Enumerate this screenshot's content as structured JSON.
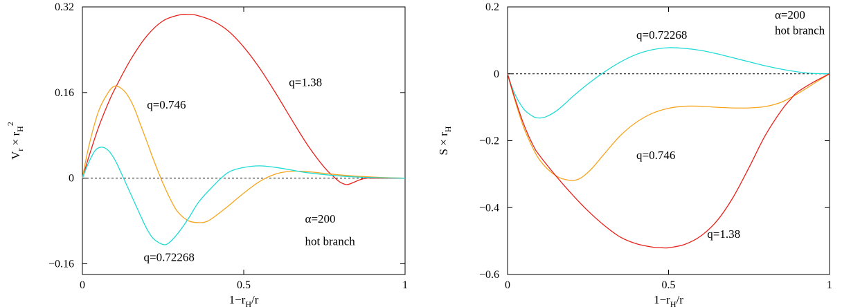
{
  "chart_data": [
    {
      "type": "line",
      "xlabel": {
        "main": "1−r",
        "sub": "H",
        "rest": "/r"
      },
      "ylabel": {
        "main": "V",
        "sub": "r",
        "mid": " × r",
        "sub2": "H",
        "sup": "2"
      },
      "xlim": [
        0,
        1
      ],
      "ylim": [
        -0.18,
        0.32
      ],
      "xticks": [
        0,
        0.5,
        1
      ],
      "xtick_labels": [
        "0",
        "0.5",
        "1"
      ],
      "yticks": [
        -0.16,
        0,
        0.16,
        0.32
      ],
      "ytick_labels": [
        "−0.16",
        "0",
        "0.16",
        "0.32"
      ],
      "zero_line": true,
      "annotations": [
        {
          "text": "α=200",
          "x": 0.69,
          "y": -0.083
        },
        {
          "text": "hot branch",
          "x": 0.69,
          "y": -0.125
        }
      ],
      "series": [
        {
          "name": "q=1.38",
          "color": "#e8201a",
          "label_at": {
            "x": 0.64,
            "y": 0.172
          },
          "x": [
            0,
            0.02,
            0.05,
            0.08,
            0.1,
            0.15,
            0.2,
            0.25,
            0.3,
            0.33,
            0.35,
            0.4,
            0.45,
            0.5,
            0.55,
            0.6,
            0.65,
            0.7,
            0.75,
            0.78,
            0.8,
            0.82,
            0.84,
            0.86,
            0.88,
            0.9,
            0.95,
            1.0
          ],
          "y": [
            0,
            0.04,
            0.095,
            0.14,
            0.166,
            0.222,
            0.266,
            0.294,
            0.305,
            0.306,
            0.305,
            0.295,
            0.276,
            0.245,
            0.205,
            0.158,
            0.108,
            0.06,
            0.02,
            0.002,
            -0.008,
            -0.012,
            -0.008,
            -0.003,
            0,
            0,
            0,
            0
          ]
        },
        {
          "name": "q=0.746",
          "color": "#f5a51e",
          "label_at": {
            "x": 0.2,
            "y": 0.13
          },
          "x": [
            0,
            0.02,
            0.05,
            0.08,
            0.1,
            0.12,
            0.14,
            0.16,
            0.18,
            0.2,
            0.22,
            0.25,
            0.28,
            0.3,
            0.33,
            0.36,
            0.38,
            0.4,
            0.45,
            0.5,
            0.55,
            0.6,
            0.65,
            0.7,
            0.8,
            0.9,
            1.0
          ],
          "y": [
            0,
            0.06,
            0.125,
            0.16,
            0.172,
            0.168,
            0.155,
            0.132,
            0.1,
            0.068,
            0.035,
            -0.01,
            -0.048,
            -0.066,
            -0.08,
            -0.083,
            -0.082,
            -0.076,
            -0.053,
            -0.028,
            -0.006,
            0.008,
            0.013,
            0.012,
            0.006,
            0.002,
            0
          ]
        },
        {
          "name": "q=0.72268",
          "color": "#1fdbd5",
          "label_at": {
            "x": 0.19,
            "y": -0.155
          },
          "x": [
            0,
            0.02,
            0.04,
            0.06,
            0.08,
            0.1,
            0.12,
            0.15,
            0.18,
            0.2,
            0.22,
            0.25,
            0.27,
            0.3,
            0.33,
            0.36,
            0.4,
            0.45,
            0.5,
            0.55,
            0.6,
            0.65,
            0.7,
            0.8,
            0.9,
            1.0
          ],
          "y": [
            0,
            0.03,
            0.052,
            0.058,
            0.052,
            0.035,
            0.01,
            -0.03,
            -0.07,
            -0.095,
            -0.113,
            -0.124,
            -0.12,
            -0.1,
            -0.074,
            -0.045,
            -0.018,
            0.01,
            0.02,
            0.023,
            0.02,
            0.015,
            0.01,
            0.004,
            0.001,
            0
          ]
        }
      ]
    },
    {
      "type": "line",
      "xlabel": {
        "main": "1−r",
        "sub": "H",
        "rest": "/r"
      },
      "ylabel": {
        "main": "S × r",
        "sub": "H",
        "mid": "",
        "sub2": "",
        "sup": ""
      },
      "xlim": [
        0,
        1
      ],
      "ylim": [
        -0.6,
        0.2
      ],
      "xticks": [
        0,
        0.5,
        1
      ],
      "xtick_labels": [
        "0",
        "0.5",
        "1"
      ],
      "yticks": [
        -0.6,
        -0.4,
        -0.2,
        0,
        0.2
      ],
      "ytick_labels": [
        "−0.6",
        "−0.4",
        "−0.2",
        "0",
        "0.2"
      ],
      "zero_line": true,
      "annotations": [
        {
          "text": "α=200",
          "x": 0.83,
          "y": 0.165
        },
        {
          "text": "hot branch",
          "x": 0.83,
          "y": 0.118
        }
      ],
      "series": [
        {
          "name": "q=0.72268",
          "color": "#1fdbd5",
          "label_at": {
            "x": 0.4,
            "y": 0.105
          },
          "x": [
            0,
            0.02,
            0.05,
            0.08,
            0.1,
            0.12,
            0.15,
            0.18,
            0.2,
            0.25,
            0.3,
            0.35,
            0.4,
            0.45,
            0.5,
            0.55,
            0.6,
            0.65,
            0.7,
            0.75,
            0.8,
            0.85,
            0.9,
            0.95,
            1.0
          ],
          "y": [
            0,
            -0.055,
            -0.105,
            -0.128,
            -0.132,
            -0.128,
            -0.112,
            -0.088,
            -0.07,
            -0.03,
            0.005,
            0.035,
            0.058,
            0.072,
            0.078,
            0.076,
            0.07,
            0.06,
            0.048,
            0.036,
            0.024,
            0.014,
            0.006,
            0.001,
            0
          ]
        },
        {
          "name": "q=0.746",
          "color": "#f5a51e",
          "label_at": {
            "x": 0.4,
            "y": -0.255
          },
          "x": [
            0,
            0.02,
            0.05,
            0.08,
            0.1,
            0.13,
            0.16,
            0.19,
            0.21,
            0.23,
            0.26,
            0.3,
            0.35,
            0.4,
            0.45,
            0.5,
            0.55,
            0.6,
            0.65,
            0.7,
            0.75,
            0.8,
            0.85,
            0.9,
            0.95,
            1.0
          ],
          "y": [
            0,
            -0.07,
            -0.16,
            -0.225,
            -0.258,
            -0.29,
            -0.31,
            -0.318,
            -0.318,
            -0.31,
            -0.285,
            -0.24,
            -0.185,
            -0.145,
            -0.118,
            -0.103,
            -0.097,
            -0.097,
            -0.1,
            -0.102,
            -0.102,
            -0.098,
            -0.085,
            -0.06,
            -0.03,
            0
          ]
        },
        {
          "name": "q=1.38",
          "color": "#e8201a",
          "label_at": {
            "x": 0.62,
            "y": -0.49
          },
          "x": [
            0,
            0.02,
            0.05,
            0.08,
            0.1,
            0.15,
            0.2,
            0.25,
            0.3,
            0.35,
            0.4,
            0.45,
            0.48,
            0.5,
            0.55,
            0.6,
            0.65,
            0.7,
            0.75,
            0.8,
            0.85,
            0.88,
            0.9,
            0.95,
            1.0
          ],
          "y": [
            0,
            -0.065,
            -0.15,
            -0.215,
            -0.245,
            -0.305,
            -0.36,
            -0.41,
            -0.453,
            -0.488,
            -0.508,
            -0.518,
            -0.52,
            -0.52,
            -0.51,
            -0.485,
            -0.44,
            -0.37,
            -0.28,
            -0.185,
            -0.11,
            -0.075,
            -0.055,
            -0.025,
            0
          ]
        }
      ]
    }
  ]
}
